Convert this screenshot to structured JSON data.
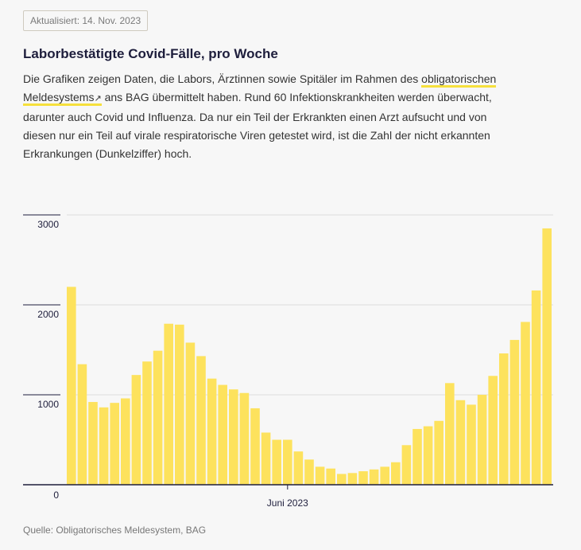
{
  "badge": "Aktualisiert: 14. Nov. 2023",
  "title": "Laborbestätigte Covid-Fälle, pro Woche",
  "lead": {
    "before": "Die Grafiken zeigen Daten, die Labors, Ärztinnen sowie Spitäler im Rahmen des ",
    "link_text": "obligatorischen Meldesystems",
    "link_arrow": "↗",
    "after": " ans BAG übermittelt haben. Rund 60 Infektionskrankheiten werden überwacht, darunter auch Covid und Influenza. Da nur ein Teil der Erkrankten einen Arzt aufsucht und von diesen nur ein Teil auf virale respiratorische Viren getestet wird, ist die Zahl der nicht erkannten Erkrankungen (Dunkelziffer) hoch."
  },
  "source": "Quelle: Obligatorisches Meldesystem, BAG",
  "colors": {
    "bar": "#fde25d",
    "axis": "#1e1e3c",
    "grid": "#dedede"
  },
  "chart_data": {
    "type": "bar",
    "title": "Laborbestätigte Covid-Fälle, pro Woche",
    "xlabel": "",
    "ylabel": "",
    "ylim": [
      0,
      3000
    ],
    "yticks": [
      0,
      1000,
      2000,
      3000
    ],
    "xticks": [
      {
        "label": "Juni 2023",
        "index": 20
      }
    ],
    "values": [
      2200,
      1340,
      920,
      860,
      910,
      960,
      1220,
      1370,
      1490,
      1790,
      1780,
      1580,
      1430,
      1180,
      1110,
      1060,
      1020,
      850,
      580,
      500,
      500,
      370,
      280,
      200,
      180,
      120,
      130,
      150,
      170,
      200,
      250,
      440,
      620,
      650,
      710,
      1130,
      940,
      890,
      1000,
      1210,
      1460,
      1610,
      1810,
      2160,
      2850
    ]
  }
}
